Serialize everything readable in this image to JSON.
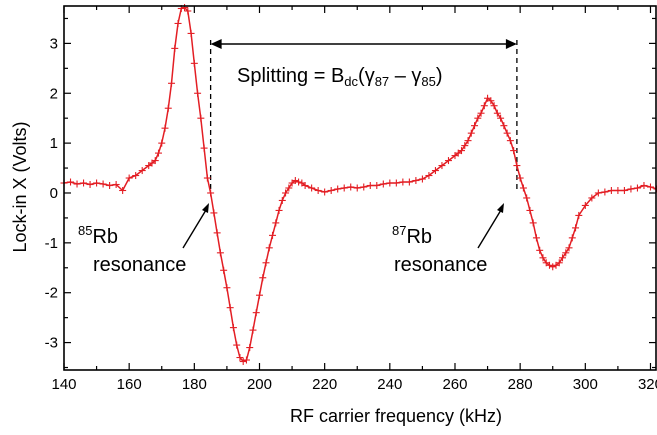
{
  "chart_data": {
    "type": "line",
    "xlabel": "RF carrier frequency (kHz)",
    "ylabel": "Lock-in X (Volts)",
    "xlim": [
      140,
      322
    ],
    "ylim": [
      -3.55,
      3.75
    ],
    "xticks": [
      140,
      160,
      180,
      200,
      220,
      240,
      260,
      280,
      300,
      320
    ],
    "yticks": [
      -3,
      -2,
      -1,
      0,
      1,
      2,
      3
    ],
    "grid": false,
    "legend": "none",
    "series_color": "#e31e24",
    "series": [
      {
        "marker": "plus",
        "x": [
          140,
          142,
          144,
          146,
          148,
          150,
          152,
          154,
          156,
          158,
          160,
          162,
          164,
          166,
          167,
          168,
          169,
          170,
          171,
          172,
          173,
          174,
          175,
          176,
          177,
          178,
          179,
          180,
          181,
          182,
          183,
          184,
          185,
          186,
          187,
          188,
          189,
          190,
          191,
          192,
          193,
          194,
          195,
          196,
          197,
          198,
          199,
          200,
          201,
          202,
          203,
          204,
          205,
          206,
          207,
          208,
          209,
          210,
          211,
          212,
          213,
          214,
          216,
          218,
          220,
          222,
          224,
          226,
          228,
          230,
          232,
          234,
          236,
          238,
          240,
          242,
          244,
          246,
          248,
          250,
          252,
          254,
          256,
          258,
          260,
          261,
          262,
          263,
          264,
          265,
          266,
          267,
          268,
          269,
          270,
          271,
          272,
          273,
          274,
          275,
          276,
          277,
          278,
          279,
          280,
          281,
          282,
          283,
          284,
          285,
          286,
          287,
          288,
          289,
          290,
          291,
          292,
          293,
          294,
          295,
          296,
          297,
          298,
          300,
          302,
          304,
          306,
          308,
          310,
          312,
          314,
          316,
          318,
          320,
          322
        ],
        "y": [
          0.2,
          0.22,
          0.18,
          0.2,
          0.17,
          0.2,
          0.18,
          0.15,
          0.17,
          0.05,
          0.3,
          0.35,
          0.45,
          0.55,
          0.6,
          0.65,
          0.8,
          1.0,
          1.3,
          1.7,
          2.2,
          2.9,
          3.4,
          3.7,
          3.72,
          3.65,
          3.2,
          2.6,
          2.0,
          1.5,
          0.9,
          0.3,
          0.0,
          -0.4,
          -0.8,
          -1.2,
          -1.55,
          -1.9,
          -2.3,
          -2.7,
          -3.05,
          -3.3,
          -3.38,
          -3.35,
          -3.1,
          -2.75,
          -2.4,
          -2.05,
          -1.7,
          -1.4,
          -1.1,
          -0.85,
          -0.6,
          -0.35,
          -0.15,
          0.0,
          0.1,
          0.2,
          0.25,
          0.22,
          0.2,
          0.15,
          0.1,
          0.05,
          0.02,
          0.05,
          0.08,
          0.1,
          0.12,
          0.1,
          0.12,
          0.15,
          0.15,
          0.18,
          0.2,
          0.2,
          0.22,
          0.22,
          0.25,
          0.28,
          0.35,
          0.45,
          0.55,
          0.65,
          0.75,
          0.8,
          0.85,
          0.95,
          1.05,
          1.2,
          1.35,
          1.5,
          1.6,
          1.75,
          1.9,
          1.85,
          1.75,
          1.6,
          1.5,
          1.35,
          1.2,
          1.05,
          0.85,
          0.55,
          0.3,
          0.1,
          -0.1,
          -0.35,
          -0.6,
          -0.9,
          -1.15,
          -1.3,
          -1.4,
          -1.45,
          -1.48,
          -1.45,
          -1.4,
          -1.3,
          -1.2,
          -1.1,
          -0.9,
          -0.7,
          -0.45,
          -0.25,
          -0.1,
          0.0,
          0.02,
          0.05,
          0.05,
          0.05,
          0.08,
          0.1,
          0.15,
          0.12,
          0.08
        ]
      }
    ],
    "annotations": {
      "splitting_prefix": "Splitting = B",
      "splitting_sub1": "dc",
      "splitting_paren_open": "(γ",
      "splitting_sub2": "87",
      "splitting_minus": " – γ",
      "splitting_sub3": "85",
      "splitting_paren_close": ")",
      "rb85_sup": "85",
      "rb85_main": "Rb",
      "rb85_line2": "resonance",
      "rb87_sup": "87",
      "rb87_main": "Rb",
      "rb87_line2": "resonance"
    },
    "reference_lines_x": [
      185,
      279
    ]
  }
}
